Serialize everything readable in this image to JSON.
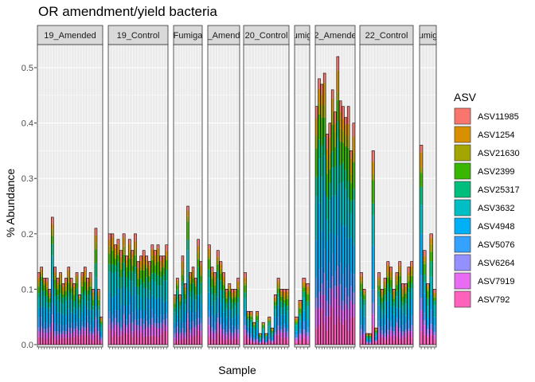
{
  "chart_data": {
    "type": "bar",
    "stacked": true,
    "faceted": true,
    "title": "OR amendment/yield bacteria",
    "xlabel": "Sample",
    "ylabel": "% Abundance",
    "ylim": [
      0,
      0.55
    ],
    "yticks": [
      0.0,
      0.1,
      0.2,
      0.3,
      0.4,
      0.5
    ],
    "ytick_labels": [
      "0.0",
      "0.1",
      "0.2",
      "0.3",
      "0.4",
      "0.5"
    ],
    "grid": true,
    "legend": {
      "title": "ASV",
      "placement": "right",
      "entries": [
        {
          "name": "ASV11985",
          "color": "#F8766D"
        },
        {
          "name": "ASV1254",
          "color": "#D89000"
        },
        {
          "name": "ASV21630",
          "color": "#A3A500"
        },
        {
          "name": "ASV2399",
          "color": "#39B600"
        },
        {
          "name": "ASV25317",
          "color": "#00BF7D"
        },
        {
          "name": "ASV3632",
          "color": "#00BFC4"
        },
        {
          "name": "ASV4948",
          "color": "#00B0F6"
        },
        {
          "name": "ASV5076",
          "color": "#35A2FF"
        },
        {
          "name": "ASV6264",
          "color": "#9590FF"
        },
        {
          "name": "ASV7919",
          "color": "#E76BF3"
        },
        {
          "name": "ASV792",
          "color": "#FF62BC"
        }
      ]
    },
    "facets": [
      {
        "label": "19_Amended",
        "totals": [
          0.13,
          0.14,
          0.12,
          0.12,
          0.1,
          0.23,
          0.14,
          0.12,
          0.13,
          0.11,
          0.12,
          0.14,
          0.12,
          0.11,
          0.13,
          0.09,
          0.13,
          0.14,
          0.12,
          0.13,
          0.1,
          0.21,
          0.1,
          0.05
        ]
      },
      {
        "label": "19_Control",
        "totals": [
          0.2,
          0.2,
          0.18,
          0.19,
          0.17,
          0.2,
          0.16,
          0.19,
          0.17,
          0.2,
          0.15,
          0.16,
          0.17,
          0.16,
          0.15,
          0.18,
          0.17,
          0.18,
          0.16,
          0.16,
          0.18
        ]
      },
      {
        "label": "Fumiga",
        "totals": [
          0.09,
          0.12,
          0.09,
          0.16,
          0.11,
          0.25,
          0.13,
          0.14,
          0.12,
          0.19,
          0.15
        ]
      },
      {
        "label": "_Amend",
        "totals": [
          0.18,
          0.14,
          0.13,
          0.17,
          0.15,
          0.13,
          0.1,
          0.11,
          0.1,
          0.1,
          0.12
        ]
      },
      {
        "label": "20_Control",
        "totals": [
          0.13,
          0.06,
          0.06,
          0.04,
          0.06,
          0.02,
          0.04,
          0.02,
          0.05,
          0.03,
          0.09,
          0.12,
          0.1,
          0.1,
          0.1
        ]
      },
      {
        "label": "umig",
        "totals": [
          0.05,
          0.08,
          0.12,
          0.11
        ]
      },
      {
        "label": "2_Amende",
        "totals": [
          0.43,
          0.48,
          0.47,
          0.49,
          0.38,
          0.4,
          0.46,
          0.42,
          0.52,
          0.44,
          0.43,
          0.41,
          0.43,
          0.35,
          0.4
        ]
      },
      {
        "label": "22_Control",
        "totals": [
          0.13,
          0.1,
          0.02,
          0.02,
          0.35,
          0.03,
          0.13,
          0.1,
          0.12,
          0.15,
          0.14,
          0.1,
          0.13,
          0.15,
          0.11,
          0.11,
          0.14,
          0.15
        ]
      },
      {
        "label": "umig",
        "totals": [
          0.36,
          0.17,
          0.11,
          0.2,
          0.1
        ]
      }
    ]
  }
}
